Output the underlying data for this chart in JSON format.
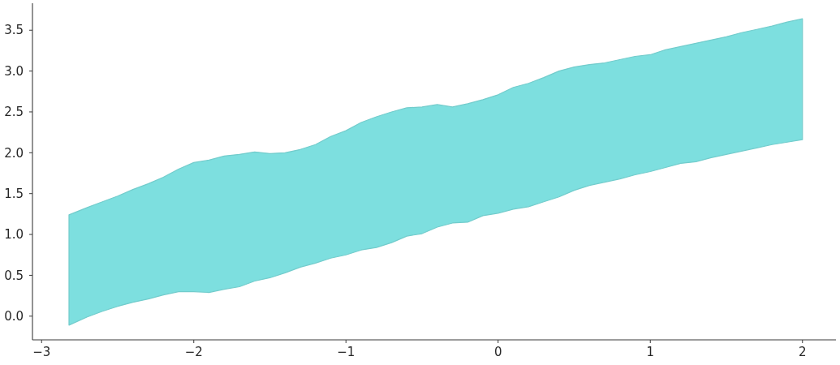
{
  "chart_data": {
    "type": "area",
    "x": [
      -2.82,
      -2.7,
      -2.6,
      -2.5,
      -2.4,
      -2.3,
      -2.2,
      -2.1,
      -2.0,
      -1.9,
      -1.8,
      -1.7,
      -1.6,
      -1.5,
      -1.4,
      -1.3,
      -1.2,
      -1.1,
      -1.0,
      -0.9,
      -0.8,
      -0.7,
      -0.6,
      -0.5,
      -0.4,
      -0.3,
      -0.2,
      -0.1,
      0.0,
      0.1,
      0.2,
      0.3,
      0.4,
      0.5,
      0.6,
      0.7,
      0.8,
      0.9,
      1.0,
      1.1,
      1.2,
      1.3,
      1.4,
      1.5,
      1.6,
      1.7,
      1.8,
      1.9,
      2.0
    ],
    "series": [
      {
        "color": "#7ddfdf",
        "values": [
          null,
          null,
          null,
          null,
          null,
          null,
          null,
          null,
          null,
          null,
          null,
          null,
          null,
          null,
          null,
          null,
          null,
          null,
          null,
          null,
          null,
          null,
          null,
          null,
          null,
          null,
          null,
          null,
          null,
          null,
          null,
          null,
          null,
          null,
          null,
          null,
          null,
          null,
          null,
          null,
          null,
          null,
          null,
          null,
          null,
          null,
          null,
          null,
          null
        ],
        "upper": [
          1.24,
          1.33,
          1.4,
          1.47,
          1.55,
          1.62,
          1.7,
          1.8,
          1.88,
          1.91,
          1.96,
          1.98,
          2.01,
          1.99,
          2.0,
          2.04,
          2.1,
          2.2,
          2.27,
          2.37,
          2.44,
          2.5,
          2.55,
          2.56,
          2.59,
          2.56,
          2.6,
          2.65,
          2.71,
          2.8,
          2.85,
          2.92,
          3.0,
          3.05,
          3.08,
          3.1,
          3.14,
          3.18,
          3.2,
          3.26,
          3.3,
          3.34,
          3.38,
          3.42,
          3.47,
          3.51,
          3.55,
          3.6,
          3.64
        ],
        "lower": [
          -0.11,
          -0.01,
          0.06,
          0.12,
          0.17,
          0.21,
          0.26,
          0.3,
          0.3,
          0.29,
          0.33,
          0.36,
          0.43,
          0.47,
          0.53,
          0.6,
          0.65,
          0.71,
          0.75,
          0.81,
          0.84,
          0.9,
          0.98,
          1.01,
          1.09,
          1.14,
          1.15,
          1.23,
          1.26,
          1.31,
          1.34,
          1.4,
          1.46,
          1.54,
          1.6,
          1.64,
          1.68,
          1.73,
          1.77,
          1.82,
          1.87,
          1.89,
          1.94,
          1.98,
          2.02,
          2.06,
          2.1,
          2.13,
          2.16
        ]
      }
    ],
    "xlim": [
      -3.06,
      2.22
    ],
    "ylim": [
      -0.29,
      3.83
    ],
    "xticks": [
      {
        "value": -3,
        "label": "−3"
      },
      {
        "value": -2,
        "label": "−2"
      },
      {
        "value": -1,
        "label": "−1"
      },
      0,
      1,
      2
    ],
    "yticks": [
      {
        "value": 0,
        "label": "0.0"
      },
      0.5,
      {
        "value": 1,
        "label": "1.0"
      },
      1.5,
      {
        "value": 2,
        "label": "2.0"
      },
      2.5,
      {
        "value": 3,
        "label": "3.0"
      },
      3.5
    ]
  }
}
